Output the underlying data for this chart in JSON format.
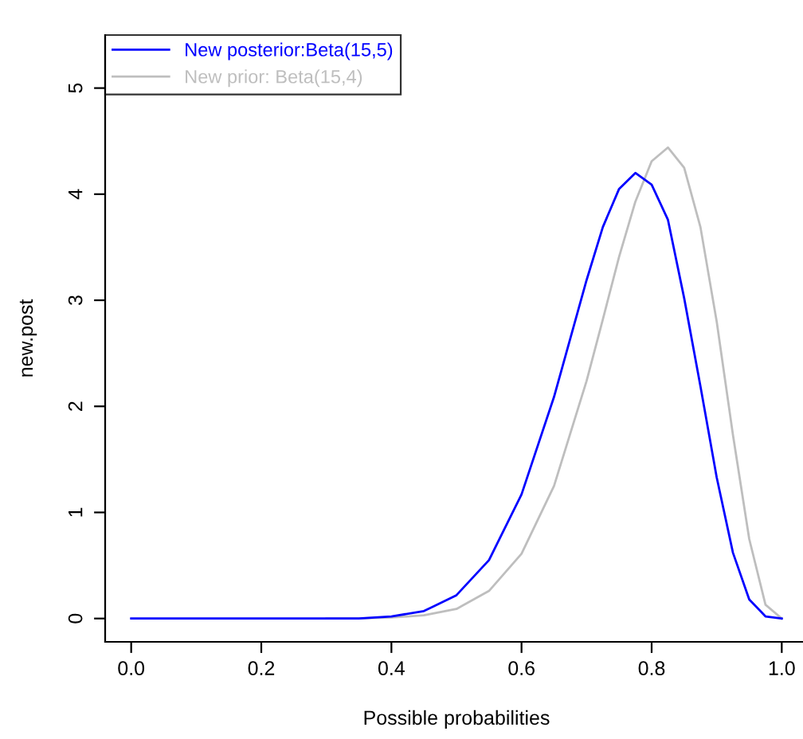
{
  "chart_data": {
    "type": "line",
    "xlabel": "Possible probabilities",
    "ylabel": "new.post",
    "x": [
      0,
      0.1,
      0.2,
      0.3,
      0.35,
      0.4,
      0.45,
      0.5,
      0.55,
      0.6,
      0.65,
      0.7,
      0.725,
      0.75,
      0.775,
      0.8,
      0.825,
      0.85,
      0.875,
      0.9,
      0.925,
      0.95,
      0.975,
      1
    ],
    "series": [
      {
        "name": "New posterior:Beta(15,5)",
        "color": "#0000ff",
        "values": [
          0,
          0,
          0,
          0,
          0,
          0.02,
          0.07,
          0.22,
          0.55,
          1.17,
          2.09,
          3.19,
          3.69,
          4.05,
          4.2,
          4.09,
          3.76,
          3.02,
          2.19,
          1.33,
          0.62,
          0.18,
          0.02,
          0
        ]
      },
      {
        "name": "New prior: Beta(15,4)",
        "color": "#bebebe",
        "values": [
          null,
          null,
          null,
          0,
          0,
          0.01,
          0.03,
          0.09,
          0.26,
          0.61,
          1.25,
          2.24,
          2.82,
          3.41,
          3.93,
          4.31,
          4.44,
          4.25,
          3.69,
          2.8,
          1.73,
          0.75,
          0.13,
          0
        ]
      }
    ],
    "xlim": [
      -0.04,
      1.04
    ],
    "ylim": [
      -0.22,
      5.5
    ],
    "xticks": [
      {
        "value": 0,
        "label": "0.0"
      },
      0.2,
      0.4,
      0.6,
      0.8,
      {
        "value": 1,
        "label": "1.0"
      }
    ],
    "yticks": [
      0,
      1,
      2,
      3,
      4,
      5
    ],
    "legend": "top left",
    "line_style": "solid",
    "marker": "none"
  }
}
